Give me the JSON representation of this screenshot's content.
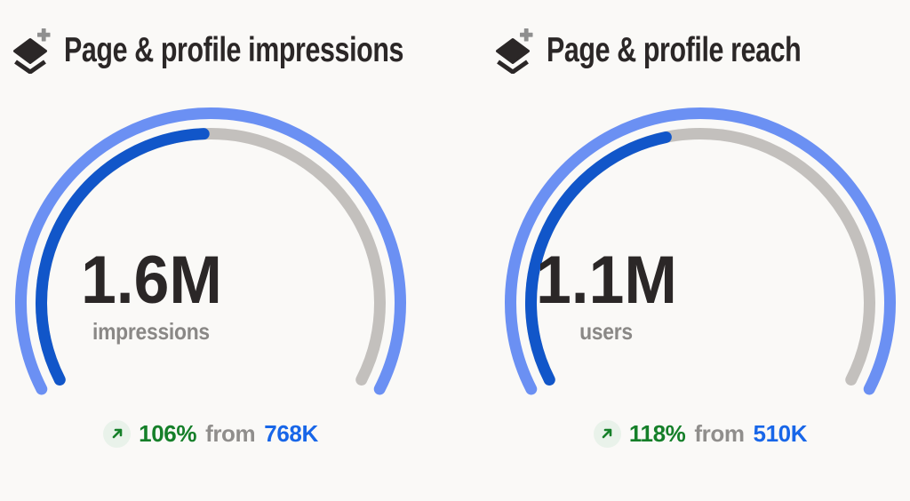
{
  "colors": {
    "background": "#FAF9F7",
    "outer_arc": "#6B90F3",
    "progress_arc": "#1156C9",
    "track_arc": "#C3C0BD",
    "title_text": "#2B2727",
    "value_text": "#2B2727",
    "unit_text": "#8A8886",
    "percent_text": "#157F29",
    "from_text": "#908E8C",
    "previous_text": "#1866E8",
    "trend_icon_bg": "#E9F2EA",
    "trend_arrow": "#157F29",
    "plus_icon": "#8F8F8F"
  },
  "chart_data": [
    {
      "type": "gauge",
      "title": "Page & profile impressions",
      "value": 1600000,
      "value_label": "1.6M",
      "unit_label": "impressions",
      "percent_change": 106,
      "percent_change_label": "106%",
      "from_word": "from",
      "previous_value": 768000,
      "previous_label": "768K",
      "trend": "up",
      "arc_fraction": 0.49,
      "arc_sweep_deg": 234
    },
    {
      "type": "gauge",
      "title": "Page & profile reach",
      "value": 1100000,
      "value_label": "1.1M",
      "unit_label": "users",
      "percent_change": 118,
      "percent_change_label": "118%",
      "from_word": "from",
      "previous_value": 510000,
      "previous_label": "510K",
      "trend": "up",
      "arc_fraction": 0.45,
      "arc_sweep_deg": 234
    }
  ]
}
